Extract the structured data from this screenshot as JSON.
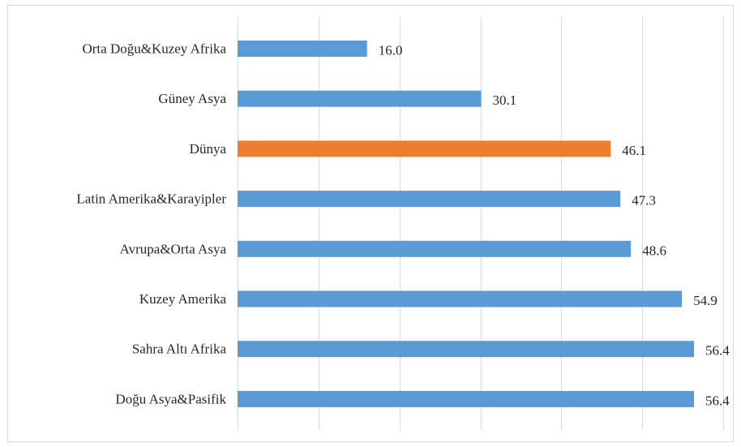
{
  "chart_data": {
    "type": "bar",
    "orientation": "horizontal",
    "categories": [
      "Orta Doğu&Kuzey Afrika",
      "Güney Asya",
      "Dünya",
      "Latin Amerika&Karayipler",
      "Avrupa&Orta Asya",
      "Kuzey Amerika",
      "Sahra Altı Afrika",
      "Doğu Asya&Pasifik"
    ],
    "values": [
      16.0,
      30.1,
      46.1,
      47.3,
      48.6,
      54.9,
      56.4,
      56.4
    ],
    "value_labels": [
      "16.0",
      "30.1",
      "46.1",
      "47.3",
      "48.6",
      "54.9",
      "56.4",
      "56.4"
    ],
    "highlight_category": "Dünya",
    "colors": {
      "default": "#5b9bd5",
      "highlight": "#ed7d31"
    },
    "xlim": [
      0,
      60
    ],
    "x_gridlines": [
      0,
      10,
      20,
      30,
      40,
      50,
      60
    ],
    "grid": true,
    "title": "",
    "xlabel": "",
    "ylabel": ""
  }
}
